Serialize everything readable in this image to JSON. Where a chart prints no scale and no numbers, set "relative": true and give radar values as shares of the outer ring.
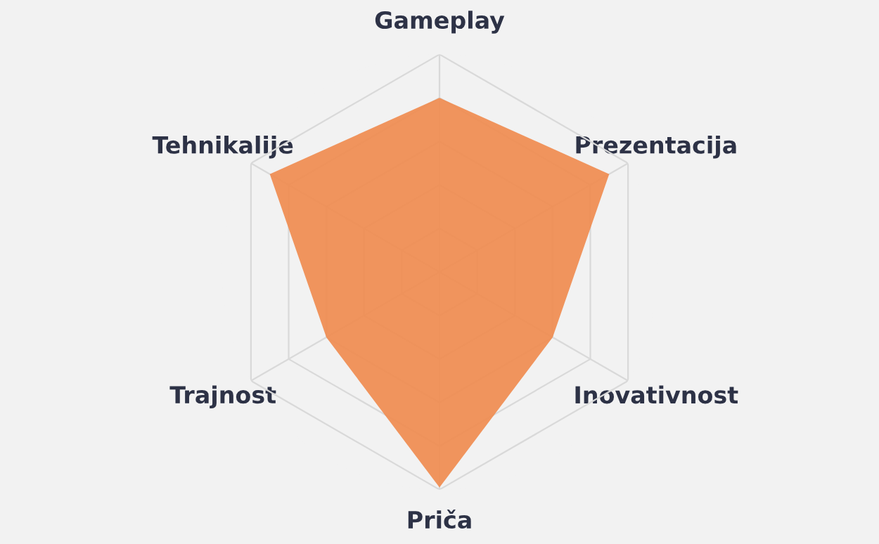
{
  "chart_data": {
    "type": "radar",
    "relative": true,
    "grid": true,
    "categories": [
      "Gameplay",
      "Prezentacija",
      "Inovativnost",
      "Priča",
      "Trajnost",
      "Tehnikalije"
    ],
    "series": [
      {
        "color": "#ef8a4c",
        "values": [
          0.8,
          0.9,
          0.6,
          0.99,
          0.6,
          0.9
        ]
      }
    ]
  }
}
